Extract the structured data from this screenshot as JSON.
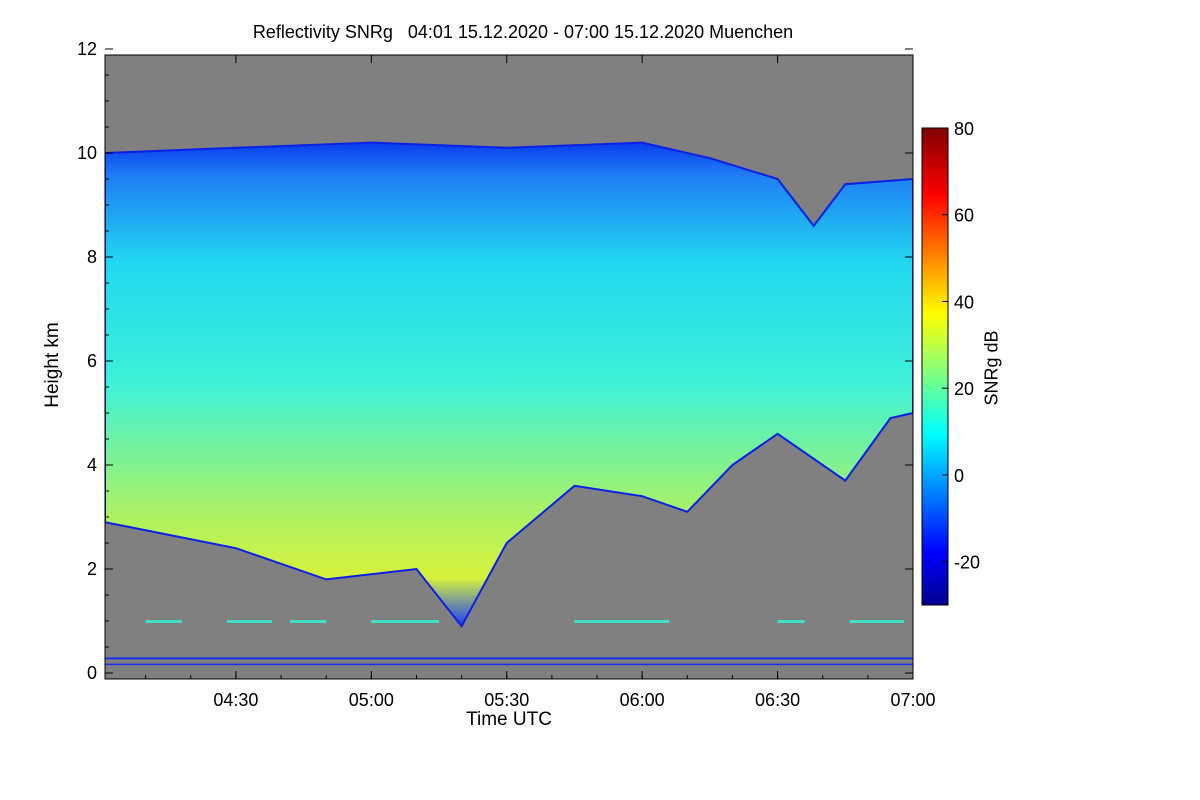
{
  "chart_data": {
    "type": "heatmap",
    "title": "Reflectivity SNRg   04:01 15.12.2020 - 07:00 15.12.2020 Muenchen",
    "xlabel": "Time UTC",
    "ylabel": "Height km",
    "x_range": [
      "04:01",
      "07:00"
    ],
    "x_ticks": [
      "04:30",
      "05:00",
      "05:30",
      "06:00",
      "06:30",
      "07:00"
    ],
    "y_range": [
      0,
      12
    ],
    "y_ticks": [
      "0",
      "2",
      "4",
      "6",
      "8",
      "10",
      "12"
    ],
    "background_color": "#808080",
    "colorbar": {
      "label": "SNRg dB",
      "range": [
        -30,
        80
      ],
      "ticks": [
        "-20",
        "0",
        "20",
        "40",
        "60",
        "80"
      ],
      "colormap": "jet"
    },
    "cloud_top_km": [
      {
        "time": "04:01",
        "km": 10.0
      },
      {
        "time": "04:30",
        "km": 10.1
      },
      {
        "time": "05:00",
        "km": 10.2
      },
      {
        "time": "05:30",
        "km": 10.1
      },
      {
        "time": "06:00",
        "km": 10.2
      },
      {
        "time": "06:15",
        "km": 9.9
      },
      {
        "time": "06:30",
        "km": 9.5
      },
      {
        "time": "06:38",
        "km": 8.6
      },
      {
        "time": "06:45",
        "km": 9.4
      },
      {
        "time": "07:00",
        "km": 9.5
      }
    ],
    "cloud_base_km": [
      {
        "time": "04:01",
        "km": 2.9
      },
      {
        "time": "04:30",
        "km": 2.4
      },
      {
        "time": "04:50",
        "km": 1.8
      },
      {
        "time": "05:10",
        "km": 2.0
      },
      {
        "time": "05:20",
        "km": 0.9
      },
      {
        "time": "05:30",
        "km": 2.5
      },
      {
        "time": "05:45",
        "km": 3.6
      },
      {
        "time": "06:00",
        "km": 3.4
      },
      {
        "time": "06:10",
        "km": 3.1
      },
      {
        "time": "06:20",
        "km": 4.0
      },
      {
        "time": "06:30",
        "km": 4.6
      },
      {
        "time": "06:45",
        "km": 3.7
      },
      {
        "time": "06:55",
        "km": 4.9
      },
      {
        "time": "07:00",
        "km": 5.0
      }
    ]
  }
}
